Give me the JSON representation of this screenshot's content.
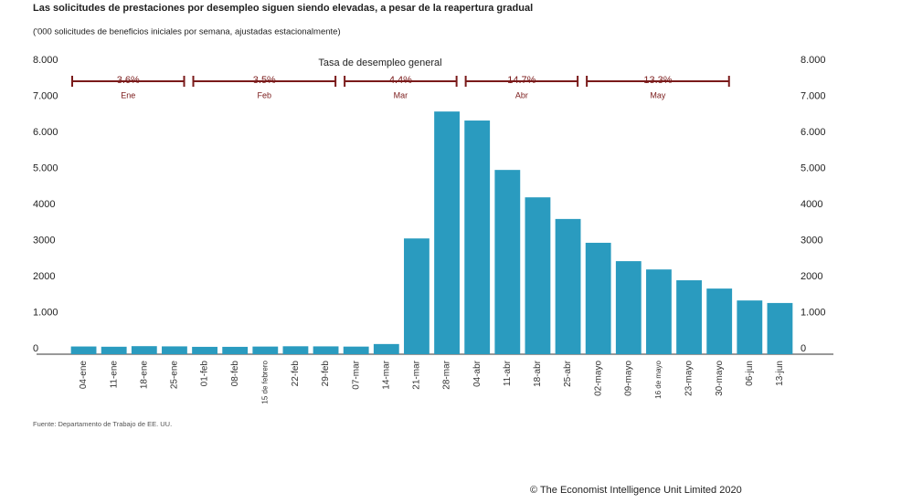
{
  "chart_data": {
    "type": "bar",
    "title": "Las solicitudes de prestaciones por desempleo siguen siendo elevadas, a pesar de la reapertura gradual",
    "subtitle": "('000 solicitudes de beneficios iniciales por semana, ajustadas estacionalmente)",
    "annotation_title": "Tasa de desempleo general",
    "unemployment": [
      {
        "month": "Ene",
        "rate": "3.6%"
      },
      {
        "month": "Feb",
        "rate": "3.5%"
      },
      {
        "month": "Mar",
        "rate": "4.4%"
      },
      {
        "month": "Abr",
        "rate": "14.7%"
      },
      {
        "month": "May",
        "rate": "13.3%"
      }
    ],
    "categories": [
      "04-ene",
      "11-ene",
      "18-ene",
      "25-ene",
      "01-feb",
      "08-feb",
      "15 de febrero",
      "22-feb",
      "29-feb",
      "07-mar",
      "14-mar",
      "21-mar",
      "28-mar",
      "04-abr",
      "11-abr",
      "18-abr",
      "25-abr",
      "02-mayo",
      "09-mayo",
      "16 de mayo",
      "23-mayo",
      "30-mayo",
      "06-jun",
      "13-jun"
    ],
    "values": [
      214,
      207,
      223,
      217,
      204,
      204,
      212,
      220,
      217,
      211,
      282,
      3210,
      6730,
      6480,
      5110,
      4350,
      3750,
      3090,
      2580,
      2350,
      2050,
      1820,
      1490,
      1420
    ],
    "color": "#2a9bbf",
    "ylim": [
      0,
      8000
    ],
    "yticks": [
      0,
      {
        "value": 1000,
        "label": "1.000"
      },
      2000,
      3000,
      4000,
      {
        "value": 5000,
        "label": "5.000"
      },
      {
        "value": 6000,
        "label": "6.000"
      },
      {
        "value": 7000,
        "label": "7.000"
      },
      {
        "value": 8000,
        "label": "8.000"
      }
    ],
    "source": "Fuente: Departamento de Trabajo de EE. UU.",
    "copyright": "© The Economist Intelligence Unit Limited 2020"
  }
}
